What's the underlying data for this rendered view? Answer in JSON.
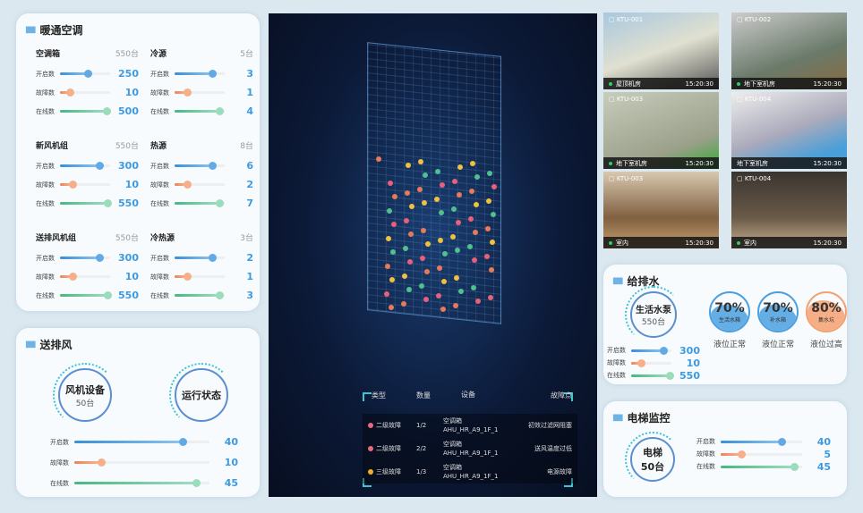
{
  "colors": {
    "accent": "#3d9ae0",
    "open": "#3a8fd8",
    "fault": "#f08050",
    "online": "#45b880"
  },
  "hvac": {
    "title": "暖通空调",
    "groups": [
      {
        "name": "空调箱",
        "total": "550台",
        "rows": [
          {
            "label": "开启数",
            "value": "250",
            "pct": 0.55
          },
          {
            "label": "故障数",
            "value": "10",
            "pct": 0.2
          },
          {
            "label": "在线数",
            "value": "500",
            "pct": 0.92
          }
        ]
      },
      {
        "name": "冷源",
        "total": "5台",
        "rows": [
          {
            "label": "开启数",
            "value": "3",
            "pct": 0.75
          },
          {
            "label": "故障数",
            "value": "1",
            "pct": 0.25
          },
          {
            "label": "在线数",
            "value": "4",
            "pct": 0.9
          }
        ]
      },
      {
        "name": "新风机组",
        "total": "550台",
        "rows": [
          {
            "label": "开启数",
            "value": "300",
            "pct": 0.78
          },
          {
            "label": "故障数",
            "value": "10",
            "pct": 0.25
          },
          {
            "label": "在线数",
            "value": "550",
            "pct": 0.95
          }
        ]
      },
      {
        "name": "热源",
        "total": "8台",
        "rows": [
          {
            "label": "开启数",
            "value": "6",
            "pct": 0.75
          },
          {
            "label": "故障数",
            "value": "2",
            "pct": 0.25
          },
          {
            "label": "在线数",
            "value": "7",
            "pct": 0.9
          }
        ]
      },
      {
        "name": "送排风机组",
        "total": "550台",
        "rows": [
          {
            "label": "开启数",
            "value": "300",
            "pct": 0.78
          },
          {
            "label": "故障数",
            "value": "10",
            "pct": 0.25
          },
          {
            "label": "在线数",
            "value": "550",
            "pct": 0.95
          }
        ]
      },
      {
        "name": "冷热源",
        "total": "3台",
        "rows": [
          {
            "label": "开启数",
            "value": "2",
            "pct": 0.75
          },
          {
            "label": "故障数",
            "value": "1",
            "pct": 0.25
          },
          {
            "label": "在线数",
            "value": "3",
            "pct": 0.9
          }
        ]
      }
    ]
  },
  "ventilation": {
    "title": "送排风",
    "ring1": {
      "title": "风机设备",
      "sub": "50台"
    },
    "ring2": {
      "title": "运行状态"
    },
    "rows": [
      {
        "label": "开启数",
        "value": "40",
        "pct": 0.8
      },
      {
        "label": "故障数",
        "value": "10",
        "pct": 0.2
      },
      {
        "label": "在线数",
        "value": "45",
        "pct": 0.9
      }
    ]
  },
  "faults": {
    "headers": [
      "类型",
      "数量",
      "设备",
      "故障点"
    ],
    "rows": [
      {
        "type": "二级故障",
        "color": "#e86a7a",
        "count": "1/2",
        "device": "空调箱",
        "code": "AHU_HR_A9_1F_1",
        "point": "初效过滤网阻塞"
      },
      {
        "type": "二级故障",
        "color": "#e86a7a",
        "count": "2/2",
        "device": "空调箱",
        "code": "AHU_HR_A9_1F_1",
        "point": "送风温度过低"
      },
      {
        "type": "三级故障",
        "color": "#f0b020",
        "count": "1/3",
        "device": "空调箱",
        "code": "AHU_HR_A9_1F_1",
        "point": "电源故障"
      }
    ]
  },
  "cameras": [
    {
      "id": "KTU-001",
      "location": "屋顶机房",
      "time": "15:20:30",
      "online": true
    },
    {
      "id": "KTU-002",
      "location": "地下室机房",
      "time": "15:20:30",
      "online": true
    },
    {
      "id": "KTU-003",
      "location": "地下室机房",
      "time": "15:20:30",
      "online": true
    },
    {
      "id": "KTU-004",
      "location": "地下室机房",
      "time": "15:20:30",
      "online": false
    },
    {
      "id": "KTU-003",
      "location": "室内",
      "time": "15:20:30",
      "online": true
    },
    {
      "id": "KTU-004",
      "location": "室内",
      "time": "15:20:30",
      "online": true
    }
  ],
  "water": {
    "title": "给排水",
    "ring": {
      "title": "生活水泵",
      "sub": "550台"
    },
    "rows": [
      {
        "label": "开启数",
        "value": "300",
        "pct": 0.8
      },
      {
        "label": "故障数",
        "value": "10",
        "pct": 0.25
      },
      {
        "label": "在线数",
        "value": "550",
        "pct": 0.95
      }
    ],
    "tanks": [
      {
        "percent": "70%",
        "level": 0.7,
        "name": "生活水箱",
        "status": "液位正常",
        "color": "#4a9fe0"
      },
      {
        "percent": "70%",
        "level": 0.7,
        "name": "补水箱",
        "status": "液位正常",
        "color": "#4a9fe0"
      },
      {
        "percent": "80%",
        "level": 0.8,
        "name": "集水坑",
        "status": "液位过高",
        "color": "#f4a070"
      }
    ]
  },
  "elevator": {
    "title": "电梯监控",
    "ring": {
      "title": "电梯",
      "sub": "50台"
    },
    "rows": [
      {
        "label": "开启数",
        "value": "40",
        "pct": 0.75
      },
      {
        "label": "故障数",
        "value": "5",
        "pct": 0.25
      },
      {
        "label": "在线数",
        "value": "45",
        "pct": 0.9
      }
    ]
  }
}
